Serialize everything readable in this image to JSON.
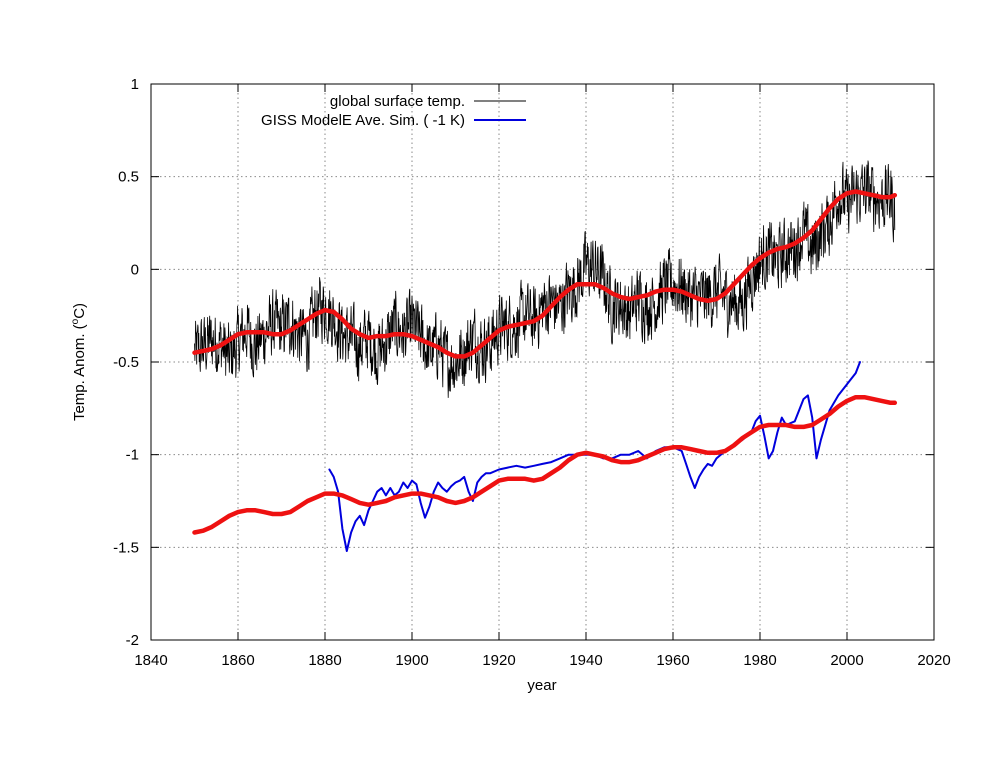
{
  "chart_data": {
    "type": "line",
    "title": "",
    "xlabel": "year",
    "ylabel": "Temp. Anom. (",
    "ylabel_sup": "o",
    "ylabel_tail": "C)",
    "xlim": [
      1840,
      2020
    ],
    "ylim": [
      -2,
      1
    ],
    "xticks": [
      1840,
      1860,
      1880,
      1900,
      1920,
      1940,
      1960,
      1980,
      2000,
      2020
    ],
    "yticks": [
      1,
      0.5,
      0,
      -0.5,
      -1,
      -1.5,
      -2
    ],
    "xtick_labels": [
      "1840",
      "1860",
      "1880",
      "1900",
      "1920",
      "1940",
      "1960",
      "1980",
      "2000",
      "2020"
    ],
    "ytick_labels": [
      "1",
      "0.5",
      "0",
      "-0.5",
      "-1",
      "-1.5",
      "-2"
    ],
    "grid": true,
    "legend_position": "top-left",
    "legend": [
      {
        "label": "global surface temp.",
        "color": "#000000"
      },
      {
        "label": "GISS ModelE Ave. Sim. ( -1 K)",
        "color": "#0000dd"
      }
    ],
    "series": [
      {
        "name": "global surface temp.",
        "color": "#000000",
        "style": "noisy-monthly",
        "x": [
          1850,
          1852,
          1854,
          1856,
          1858,
          1860,
          1862,
          1864,
          1866,
          1868,
          1870,
          1872,
          1874,
          1876,
          1878,
          1880,
          1882,
          1884,
          1886,
          1888,
          1890,
          1892,
          1894,
          1896,
          1898,
          1900,
          1902,
          1904,
          1906,
          1908,
          1910,
          1912,
          1914,
          1916,
          1918,
          1920,
          1922,
          1924,
          1926,
          1928,
          1930,
          1932,
          1934,
          1936,
          1938,
          1940,
          1942,
          1944,
          1946,
          1948,
          1950,
          1952,
          1954,
          1956,
          1958,
          1960,
          1962,
          1964,
          1966,
          1968,
          1970,
          1972,
          1974,
          1976,
          1978,
          1980,
          1982,
          1984,
          1986,
          1988,
          1990,
          1992,
          1994,
          1996,
          1998,
          2000,
          2002,
          2004,
          2006,
          2008,
          2010,
          2011
        ],
        "values": [
          -0.45,
          -0.42,
          -0.38,
          -0.4,
          -0.48,
          -0.4,
          -0.32,
          -0.42,
          -0.35,
          -0.3,
          -0.32,
          -0.28,
          -0.35,
          -0.38,
          -0.22,
          -0.2,
          -0.26,
          -0.35,
          -0.38,
          -0.42,
          -0.36,
          -0.45,
          -0.4,
          -0.3,
          -0.35,
          -0.3,
          -0.36,
          -0.45,
          -0.4,
          -0.5,
          -0.5,
          -0.45,
          -0.36,
          -0.42,
          -0.4,
          -0.32,
          -0.3,
          -0.3,
          -0.25,
          -0.28,
          -0.2,
          -0.18,
          -0.2,
          -0.12,
          -0.08,
          0.02,
          0.0,
          -0.05,
          -0.2,
          -0.18,
          -0.25,
          -0.15,
          -0.2,
          -0.18,
          -0.1,
          -0.08,
          -0.1,
          -0.15,
          -0.15,
          -0.15,
          -0.12,
          -0.15,
          -0.18,
          -0.18,
          -0.05,
          0.05,
          0.08,
          0.05,
          0.1,
          0.12,
          0.2,
          0.1,
          0.2,
          0.25,
          0.42,
          0.35,
          0.4,
          0.42,
          0.4,
          0.38,
          0.4,
          0.3
        ],
        "noise": 0.16
      },
      {
        "name": "GISS ModelE Ave. Sim. ( -1 K)",
        "color": "#0000dd",
        "style": "line",
        "x": [
          1881,
          1882,
          1883,
          1884,
          1885,
          1886,
          1887,
          1888,
          1889,
          1890,
          1891,
          1892,
          1893,
          1894,
          1895,
          1896,
          1897,
          1898,
          1899,
          1900,
          1901,
          1902,
          1903,
          1904,
          1905,
          1906,
          1907,
          1908,
          1909,
          1910,
          1911,
          1912,
          1913,
          1914,
          1915,
          1916,
          1917,
          1918,
          1920,
          1922,
          1924,
          1926,
          1928,
          1930,
          1932,
          1934,
          1936,
          1938,
          1940,
          1942,
          1944,
          1946,
          1948,
          1950,
          1952,
          1954,
          1956,
          1958,
          1960,
          1962,
          1963,
          1964,
          1965,
          1966,
          1967,
          1968,
          1969,
          1970,
          1972,
          1974,
          1976,
          1978,
          1979,
          1980,
          1981,
          1982,
          1983,
          1984,
          1985,
          1986,
          1988,
          1990,
          1991,
          1992,
          1993,
          1994,
          1996,
          1998,
          2000,
          2002,
          2003
        ],
        "values": [
          -1.08,
          -1.12,
          -1.2,
          -1.4,
          -1.52,
          -1.42,
          -1.36,
          -1.33,
          -1.38,
          -1.3,
          -1.25,
          -1.2,
          -1.18,
          -1.22,
          -1.18,
          -1.22,
          -1.2,
          -1.15,
          -1.18,
          -1.14,
          -1.16,
          -1.26,
          -1.34,
          -1.28,
          -1.2,
          -1.15,
          -1.18,
          -1.2,
          -1.17,
          -1.15,
          -1.14,
          -1.12,
          -1.2,
          -1.25,
          -1.15,
          -1.12,
          -1.1,
          -1.1,
          -1.08,
          -1.07,
          -1.06,
          -1.07,
          -1.06,
          -1.05,
          -1.04,
          -1.02,
          -1.0,
          -1.0,
          -1.0,
          -1.0,
          -1.02,
          -1.02,
          -1.0,
          -1.0,
          -0.98,
          -1.02,
          -0.98,
          -0.96,
          -0.96,
          -0.98,
          -1.05,
          -1.12,
          -1.18,
          -1.12,
          -1.08,
          -1.05,
          -1.06,
          -1.02,
          -0.98,
          -0.95,
          -0.92,
          -0.88,
          -0.82,
          -0.79,
          -0.9,
          -1.02,
          -0.98,
          -0.88,
          -0.8,
          -0.84,
          -0.82,
          -0.7,
          -0.68,
          -0.8,
          -1.02,
          -0.92,
          -0.76,
          -0.68,
          -0.62,
          -0.56,
          -0.5
        ]
      },
      {
        "name": "",
        "color": "#ee1111",
        "style": "smooth-thick",
        "x": [
          1850,
          1852,
          1854,
          1856,
          1858,
          1860,
          1862,
          1864,
          1866,
          1868,
          1870,
          1872,
          1874,
          1876,
          1878,
          1880,
          1882,
          1884,
          1886,
          1888,
          1890,
          1892,
          1894,
          1896,
          1898,
          1900,
          1902,
          1904,
          1906,
          1908,
          1910,
          1912,
          1914,
          1916,
          1918,
          1920,
          1922,
          1924,
          1926,
          1928,
          1930,
          1932,
          1934,
          1936,
          1938,
          1940,
          1942,
          1944,
          1946,
          1948,
          1950,
          1952,
          1954,
          1956,
          1958,
          1960,
          1962,
          1964,
          1966,
          1968,
          1970,
          1972,
          1974,
          1976,
          1978,
          1980,
          1982,
          1984,
          1986,
          1988,
          1990,
          1992,
          1994,
          1996,
          1998,
          2000,
          2002,
          2004,
          2006,
          2008,
          2010,
          2011
        ],
        "values": [
          -0.45,
          -0.44,
          -0.43,
          -0.41,
          -0.38,
          -0.35,
          -0.34,
          -0.34,
          -0.34,
          -0.35,
          -0.35,
          -0.33,
          -0.3,
          -0.27,
          -0.24,
          -0.22,
          -0.23,
          -0.27,
          -0.32,
          -0.35,
          -0.37,
          -0.36,
          -0.36,
          -0.35,
          -0.35,
          -0.36,
          -0.38,
          -0.4,
          -0.42,
          -0.45,
          -0.47,
          -0.47,
          -0.45,
          -0.41,
          -0.37,
          -0.33,
          -0.31,
          -0.3,
          -0.29,
          -0.28,
          -0.25,
          -0.2,
          -0.15,
          -0.11,
          -0.08,
          -0.08,
          -0.08,
          -0.1,
          -0.13,
          -0.15,
          -0.16,
          -0.15,
          -0.14,
          -0.12,
          -0.11,
          -0.11,
          -0.12,
          -0.14,
          -0.16,
          -0.17,
          -0.16,
          -0.13,
          -0.08,
          -0.03,
          0.02,
          0.06,
          0.09,
          0.11,
          0.12,
          0.14,
          0.17,
          0.21,
          0.27,
          0.33,
          0.38,
          0.41,
          0.42,
          0.41,
          0.4,
          0.39,
          0.39,
          0.4
        ]
      },
      {
        "name": "",
        "color": "#ee1111",
        "style": "smooth-thick",
        "x": [
          1850,
          1852,
          1854,
          1856,
          1858,
          1860,
          1862,
          1864,
          1866,
          1868,
          1870,
          1872,
          1874,
          1876,
          1878,
          1880,
          1882,
          1884,
          1886,
          1888,
          1890,
          1892,
          1894,
          1896,
          1898,
          1900,
          1902,
          1904,
          1906,
          1908,
          1910,
          1912,
          1914,
          1916,
          1918,
          1920,
          1922,
          1924,
          1926,
          1928,
          1930,
          1932,
          1934,
          1936,
          1938,
          1940,
          1942,
          1944,
          1946,
          1948,
          1950,
          1952,
          1954,
          1956,
          1958,
          1960,
          1962,
          1964,
          1966,
          1968,
          1970,
          1972,
          1974,
          1976,
          1978,
          1980,
          1982,
          1984,
          1986,
          1988,
          1990,
          1992,
          1994,
          1996,
          1998,
          2000,
          2002,
          2004,
          2006,
          2008,
          2010,
          2011
        ],
        "values": [
          -1.42,
          -1.41,
          -1.39,
          -1.36,
          -1.33,
          -1.31,
          -1.3,
          -1.3,
          -1.31,
          -1.32,
          -1.32,
          -1.31,
          -1.28,
          -1.25,
          -1.23,
          -1.21,
          -1.21,
          -1.22,
          -1.24,
          -1.26,
          -1.27,
          -1.26,
          -1.25,
          -1.23,
          -1.22,
          -1.21,
          -1.21,
          -1.22,
          -1.23,
          -1.25,
          -1.26,
          -1.25,
          -1.23,
          -1.2,
          -1.17,
          -1.14,
          -1.13,
          -1.13,
          -1.13,
          -1.14,
          -1.13,
          -1.1,
          -1.07,
          -1.03,
          -1.0,
          -0.99,
          -1.0,
          -1.01,
          -1.03,
          -1.04,
          -1.04,
          -1.03,
          -1.01,
          -0.99,
          -0.97,
          -0.96,
          -0.96,
          -0.97,
          -0.98,
          -0.99,
          -0.99,
          -0.98,
          -0.95,
          -0.91,
          -0.88,
          -0.85,
          -0.84,
          -0.84,
          -0.84,
          -0.85,
          -0.85,
          -0.84,
          -0.81,
          -0.78,
          -0.74,
          -0.71,
          -0.69,
          -0.69,
          -0.7,
          -0.71,
          -0.72,
          -0.72
        ]
      }
    ]
  }
}
